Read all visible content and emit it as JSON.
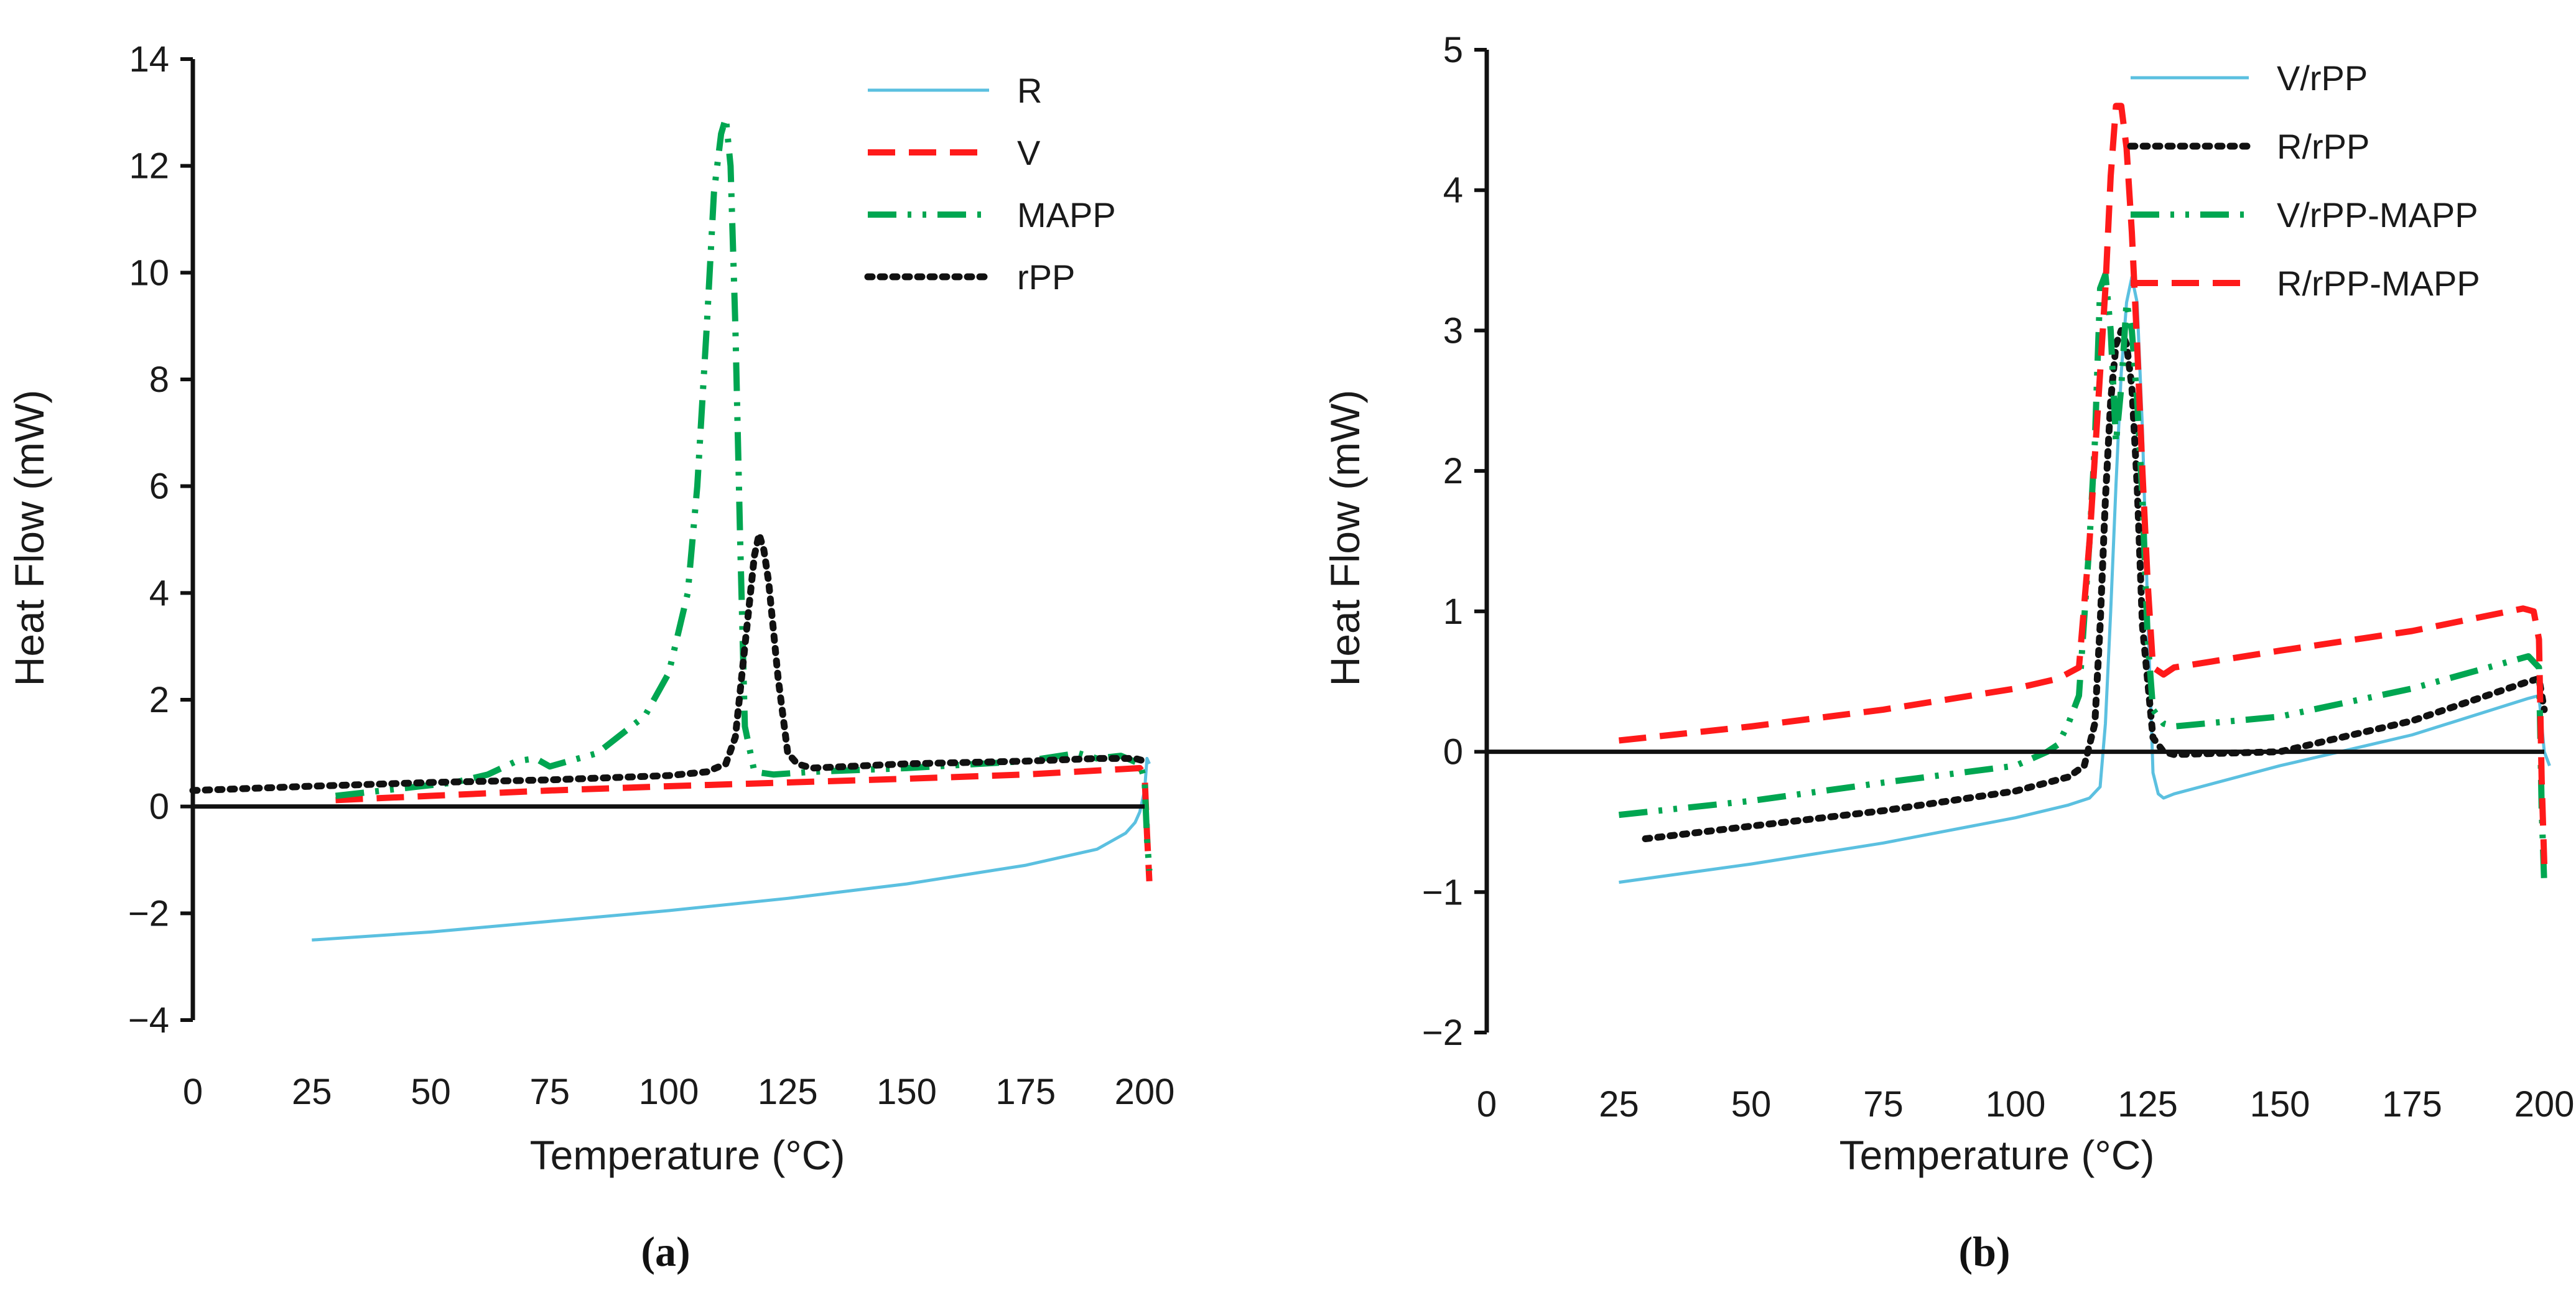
{
  "colors": {
    "R": "#5bc0e0",
    "V": "#ff1a1a",
    "MAPP": "#00a651",
    "rPP": "#111111",
    "V/rPP": "#5bc0e0",
    "R/rPP": "#111111",
    "V/rPP-MAPP": "#00a651",
    "R/rPP-MAPP": "#ff1a1a"
  },
  "chart_data": [
    {
      "type": "line",
      "panel_label": "(a)",
      "xlabel": "Temperature (°C)",
      "ylabel": "Heat Flow (mW)",
      "xlim": [
        0,
        200
      ],
      "ylim": [
        -4,
        14
      ],
      "xticks": [
        0,
        25,
        50,
        75,
        100,
        125,
        150,
        175,
        200
      ],
      "yticks": [
        -4,
        -2,
        0,
        2,
        4,
        6,
        8,
        10,
        12,
        14
      ],
      "ytick_labels": [
        "−4",
        "−2",
        "0",
        "2",
        "4",
        "6",
        "8",
        "10",
        "12",
        "14"
      ],
      "legend_position": "top-right",
      "series": [
        {
          "name": "R",
          "style": "solid",
          "x": [
            25,
            50,
            75,
            100,
            125,
            150,
            175,
            190,
            196,
            198,
            199,
            200,
            200.5,
            201
          ],
          "y": [
            -2.5,
            -2.35,
            -2.15,
            -1.95,
            -1.72,
            -1.45,
            -1.1,
            -0.8,
            -0.5,
            -0.3,
            -0.1,
            0.3,
            0.9,
            0.8
          ]
        },
        {
          "name": "V",
          "style": "dash",
          "x": [
            30,
            50,
            75,
            100,
            125,
            150,
            175,
            195,
            199,
            200,
            200.5,
            201
          ],
          "y": [
            0.12,
            0.2,
            0.3,
            0.38,
            0.45,
            0.52,
            0.6,
            0.7,
            0.72,
            0.6,
            -0.5,
            -1.4
          ]
        },
        {
          "name": "MAPP",
          "style": "dashdotdot",
          "x": [
            30,
            40,
            55,
            62,
            68,
            72,
            75,
            85,
            95,
            100,
            104,
            106,
            108,
            109.5,
            111,
            112,
            113,
            114,
            115,
            116,
            118,
            122,
            130,
            150,
            175,
            186,
            190,
            195,
            199,
            200,
            200.5,
            201
          ],
          "y": [
            0.2,
            0.3,
            0.45,
            0.6,
            0.85,
            0.9,
            0.75,
            1.0,
            1.7,
            2.5,
            4.0,
            6.0,
            9.0,
            11.5,
            12.6,
            12.9,
            12.0,
            9.0,
            5.0,
            1.5,
            0.65,
            0.6,
            0.65,
            0.72,
            0.85,
            1.0,
            0.9,
            0.95,
            0.8,
            0.5,
            -0.6,
            -1.2
          ]
        },
        {
          "name": "rPP",
          "style": "dot",
          "x": [
            0,
            25,
            50,
            75,
            100,
            108,
            112,
            114,
            116,
            118,
            119,
            120,
            121,
            123,
            125,
            127,
            130,
            150,
            175,
            190,
            198,
            200
          ],
          "y": [
            0.3,
            0.38,
            0.45,
            0.5,
            0.58,
            0.65,
            0.8,
            1.3,
            3.0,
            4.7,
            5.1,
            4.8,
            4.2,
            2.4,
            1.0,
            0.8,
            0.72,
            0.8,
            0.85,
            0.9,
            0.9,
            0.85
          ]
        }
      ]
    },
    {
      "type": "line",
      "panel_label": "(b)",
      "xlabel": "Temperature (°C)",
      "ylabel": "Heat Flow (mW)",
      "xlim": [
        0,
        200
      ],
      "ylim": [
        -2,
        5
      ],
      "xticks": [
        0,
        25,
        50,
        75,
        100,
        125,
        150,
        175,
        200
      ],
      "yticks": [
        -2,
        -1,
        0,
        1,
        2,
        3,
        4,
        5
      ],
      "ytick_labels": [
        "−2",
        "−1",
        "0",
        "1",
        "2",
        "3",
        "4",
        "5"
      ],
      "legend_position": "top-right",
      "series": [
        {
          "name": "V/rPP",
          "style": "solid",
          "x": [
            25,
            50,
            75,
            100,
            110,
            114,
            116,
            117,
            118,
            119,
            120,
            121,
            122,
            123,
            124,
            125,
            126,
            127,
            128,
            130,
            150,
            175,
            197,
            199,
            200,
            201
          ],
          "y": [
            -0.93,
            -0.8,
            -0.65,
            -0.47,
            -0.38,
            -0.33,
            -0.25,
            0.2,
            1.0,
            1.9,
            2.7,
            3.2,
            3.38,
            3.2,
            2.3,
            1.0,
            -0.15,
            -0.3,
            -0.33,
            -0.3,
            -0.1,
            0.12,
            0.38,
            0.4,
            0.0,
            -0.1
          ]
        },
        {
          "name": "R/rPP",
          "style": "dot",
          "x": [
            30,
            50,
            75,
            100,
            110,
            113,
            115,
            116,
            117,
            118,
            119,
            120,
            121,
            122,
            123,
            124,
            126,
            128,
            130,
            150,
            175,
            197,
            199,
            200
          ],
          "y": [
            -0.62,
            -0.53,
            -0.42,
            -0.28,
            -0.18,
            -0.1,
            0.2,
            0.9,
            1.8,
            2.5,
            2.9,
            3.0,
            2.9,
            2.6,
            1.9,
            0.9,
            0.1,
            0.0,
            -0.02,
            0.0,
            0.22,
            0.5,
            0.52,
            0.3
          ]
        },
        {
          "name": "V/rPP-MAPP",
          "style": "dashdotdot",
          "x": [
            25,
            50,
            75,
            100,
            106,
            108,
            110,
            112,
            114,
            115,
            116,
            117,
            118,
            119,
            120,
            121,
            122,
            123,
            124,
            125,
            126,
            128,
            130,
            150,
            175,
            197,
            199,
            199.5,
            200
          ],
          "y": [
            -0.45,
            -0.35,
            -0.22,
            -0.1,
            0.0,
            0.05,
            0.2,
            0.4,
            1.5,
            2.2,
            3.3,
            3.4,
            3.0,
            2.2,
            2.6,
            3.2,
            3.0,
            2.5,
            1.8,
            0.8,
            0.3,
            0.2,
            0.18,
            0.25,
            0.45,
            0.68,
            0.6,
            -0.4,
            -0.95
          ]
        },
        {
          "name": "R/rPP-MAPP",
          "style": "dash",
          "x": [
            25,
            50,
            75,
            100,
            108,
            112,
            114,
            116,
            117,
            118,
            119,
            120,
            121,
            122,
            123,
            124,
            125,
            126,
            128,
            130,
            150,
            175,
            196,
            198,
            199,
            199.5,
            200
          ],
          "y": [
            0.08,
            0.18,
            0.3,
            0.45,
            0.52,
            0.6,
            1.5,
            2.7,
            3.3,
            4.1,
            4.6,
            4.6,
            4.3,
            3.7,
            2.9,
            2.0,
            1.2,
            0.6,
            0.55,
            0.6,
            0.72,
            0.86,
            1.02,
            1.0,
            0.8,
            -0.2,
            -0.8
          ]
        }
      ]
    }
  ]
}
